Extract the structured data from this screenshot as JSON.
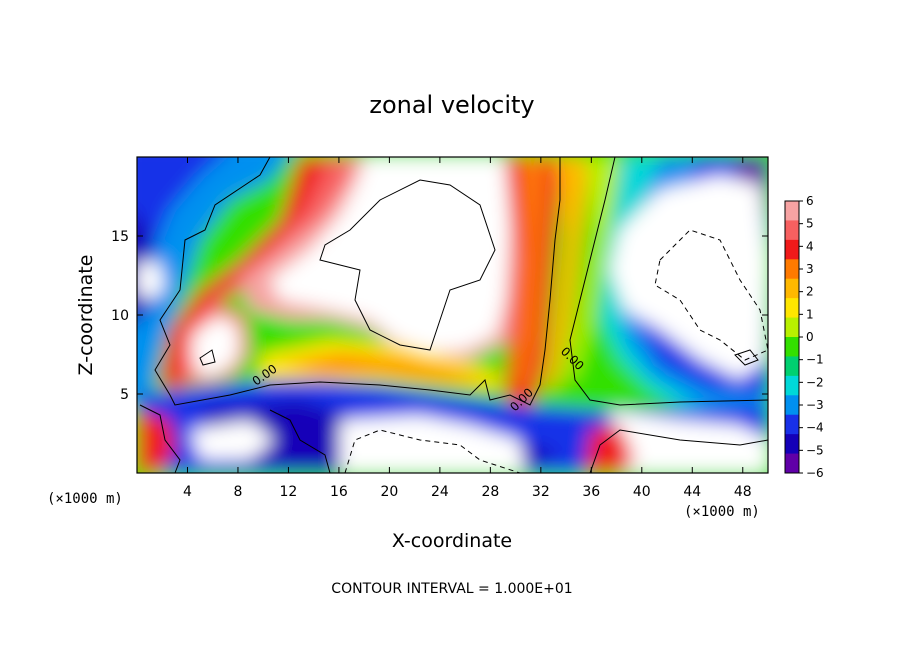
{
  "chart_data": {
    "type": "heatmap",
    "title": "zonal velocity",
    "xlabel": "X-coordinate",
    "ylabel": "Z-coordinate",
    "x_unit": "(×1000 m)",
    "x_unit_right": "(×1000 m)",
    "xlim": [
      0,
      50
    ],
    "ylim": [
      0,
      20
    ],
    "xticks": [
      4,
      8,
      12,
      16,
      20,
      24,
      28,
      32,
      36,
      40,
      44,
      48
    ],
    "yticks": [
      5,
      10,
      15
    ],
    "colorbar": {
      "levels": [
        6,
        5,
        4,
        3,
        2,
        1,
        0,
        -1,
        -2,
        -3,
        -4,
        -5,
        -6
      ],
      "labels": [
        "6",
        "5",
        "4",
        "3",
        "2",
        "1",
        "0",
        "−1",
        "−2",
        "−3",
        "−4",
        "−5",
        "−6"
      ],
      "colors": [
        "#f7a3a3",
        "#f76060",
        "#f01a1a",
        "#ff7a00",
        "#ffb800",
        "#ffe600",
        "#b8f000",
        "#33e000",
        "#00d070",
        "#00d8d8",
        "#0090f0",
        "#1830e8",
        "#1400b8",
        "#6000a8"
      ],
      "range": [
        -6,
        6
      ]
    },
    "contour_label": "0.00",
    "contour_interval_text": "CONTOUR INTERVAL = 1.000E+01",
    "grid": false,
    "colorbar_position": "right"
  }
}
